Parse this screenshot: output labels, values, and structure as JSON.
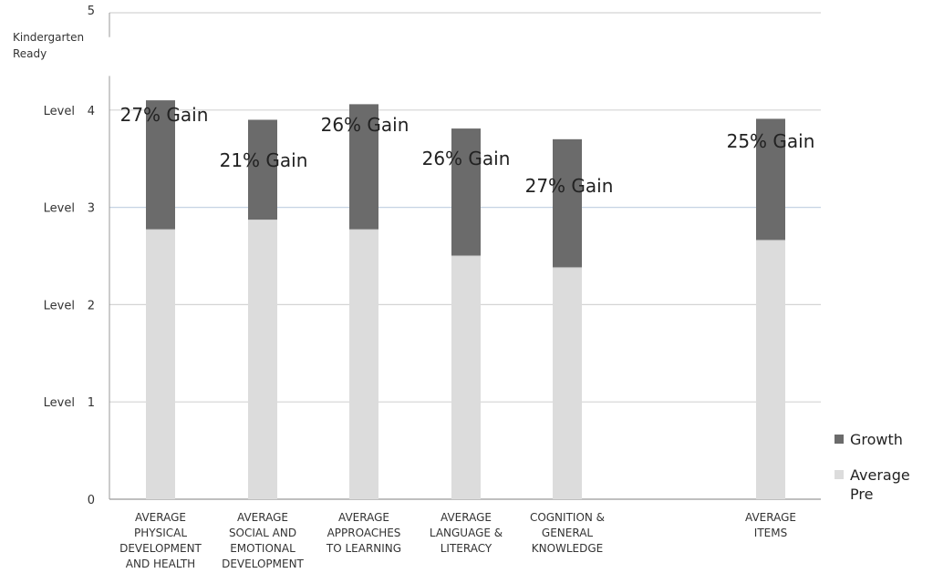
{
  "chart_data": {
    "type": "bar",
    "stacked": true,
    "ylim": [
      0,
      5
    ],
    "grid": true,
    "legend_position": "right",
    "y_tick_labels": [
      "0",
      "Level 1",
      "Level 2",
      "Level 3",
      "Level 4",
      "5"
    ],
    "y_annotation": "Kindergarten Ready",
    "categories": [
      [
        "AVERAGE",
        "PHYSICAL",
        "DEVELOPMENT",
        "AND HEALTH"
      ],
      [
        "AVERAGE",
        "SOCIAL AND",
        "EMOTIONAL",
        "DEVELOPMENT"
      ],
      [
        "AVERAGE",
        "APPROACHES",
        "TO LEARNING"
      ],
      [
        "AVERAGE",
        "LANGUAGE &",
        "LITERACY"
      ],
      [
        "COGNITION &",
        "GENERAL",
        "KNOWLEDGE"
      ],
      [
        "AVERAGE",
        "ITEMS"
      ]
    ],
    "series": [
      {
        "name": "Average Pre",
        "color": "#dcdcdc",
        "values": [
          2.77,
          2.87,
          2.77,
          2.5,
          2.38,
          2.66
        ]
      },
      {
        "name": "Growth",
        "color": "#6b6b6b",
        "values": [
          1.33,
          1.03,
          1.29,
          1.31,
          1.32,
          1.25
        ]
      }
    ],
    "annotations": [
      "27% Gain",
      "21% Gain",
      "26% Gain",
      "26% Gain",
      "27% Gain",
      "25% Gain"
    ],
    "legend": [
      {
        "label": "Growth",
        "color": "#6b6b6b"
      },
      {
        "label": "Average Pre",
        "color": "#dcdcdc"
      }
    ]
  }
}
